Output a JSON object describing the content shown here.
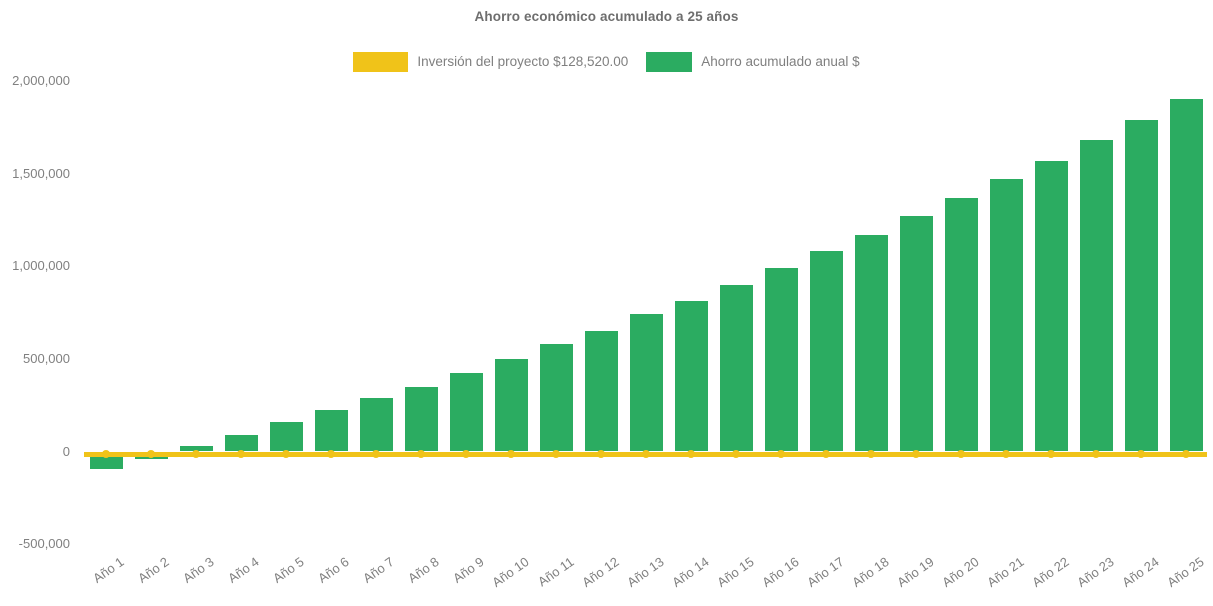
{
  "title": "Ahorro económico acumulado a 25 años",
  "legend": [
    {
      "label": "Inversión del proyecto $128,520.00",
      "color": "#F0C319",
      "series_type": "line"
    },
    {
      "label": "Ahorro acumulado anual $",
      "color": "#2BAC61",
      "series_type": "bar"
    }
  ],
  "colors": {
    "bar_green": "#2BAC61",
    "line_yellow": "#F0C319",
    "axis_text": "#808080",
    "title_text": "#6E6E6E",
    "background": "#FFFFFF"
  },
  "chart_data": {
    "type": "bar",
    "title": "Ahorro económico acumulado a 25 años",
    "xlabel": "",
    "ylabel": "",
    "categories": [
      "Año 1",
      "Año 2",
      "Año 3",
      "Año 4",
      "Año 5",
      "Año 6",
      "Año 7",
      "Año 8",
      "Año 9",
      "Año 10",
      "Año 11",
      "Año 12",
      "Año 13",
      "Año 14",
      "Año 15",
      "Año 16",
      "Año 17",
      "Año 18",
      "Año 19",
      "Año 20",
      "Año 21",
      "Año 22",
      "Año 23",
      "Año 24",
      "Año 25"
    ],
    "series": [
      {
        "name": "Ahorro acumulado anual $",
        "type": "bar",
        "color": "#2BAC61",
        "values": [
          -95000,
          -40000,
          30000,
          90000,
          160000,
          225000,
          290000,
          350000,
          425000,
          500000,
          580000,
          650000,
          740000,
          815000,
          900000,
          990000,
          1085000,
          1170000,
          1270000,
          1370000,
          1470000,
          1570000,
          1680000,
          1790000,
          1905000
        ]
      },
      {
        "name": "Inversión del proyecto $128,520.00",
        "type": "line",
        "color": "#F0C319",
        "marker": "circle",
        "values": [
          -15000,
          -15000,
          -15000,
          -15000,
          -15000,
          -15000,
          -15000,
          -15000,
          -15000,
          -15000,
          -15000,
          -15000,
          -15000,
          -15000,
          -15000,
          -15000,
          -15000,
          -15000,
          -15000,
          -15000,
          -15000,
          -15000,
          -15000,
          -15000,
          -15000
        ]
      }
    ],
    "ylim": [
      -500000,
      2000000
    ],
    "y_ticks": [
      {
        "value": 2000000,
        "label": "2,000,000"
      },
      {
        "value": 1500000,
        "label": "1,500,000"
      },
      {
        "value": 1000000,
        "label": "1,000,000"
      },
      {
        "value": 500000,
        "label": "500,000"
      },
      {
        "value": 0,
        "label": "0"
      },
      {
        "value": -500000,
        "label": "-500,000"
      }
    ],
    "grid": false,
    "legend_position": "top",
    "x_tick_rotation_deg": -35
  }
}
